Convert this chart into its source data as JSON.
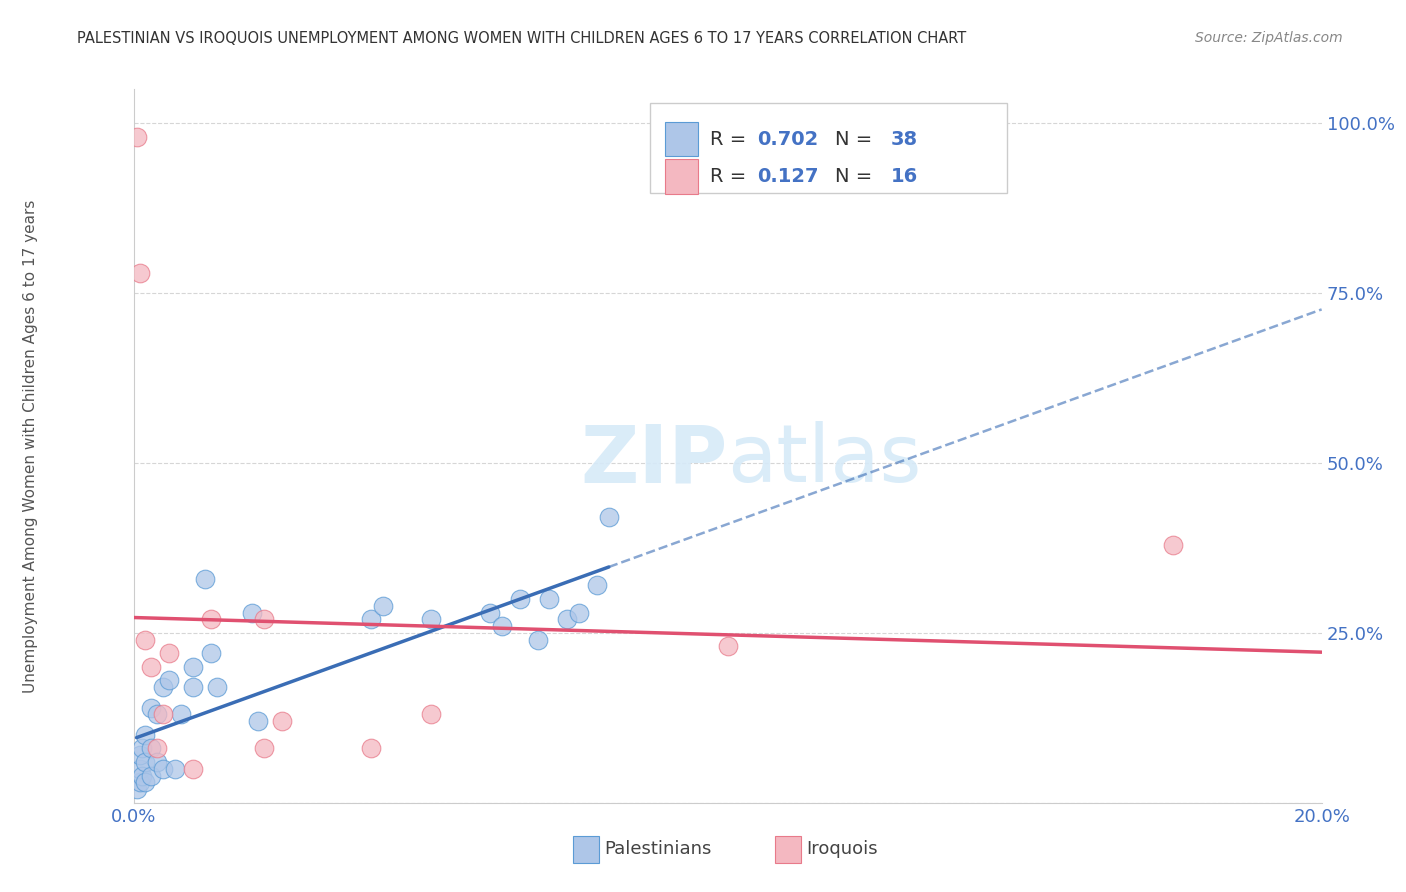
{
  "title": "PALESTINIAN VS IROQUOIS UNEMPLOYMENT AMONG WOMEN WITH CHILDREN AGES 6 TO 17 YEARS CORRELATION CHART",
  "source": "Source: ZipAtlas.com",
  "ylabel": "Unemployment Among Women with Children Ages 6 to 17 years",
  "legend_label_1": "Palestinians",
  "legend_label_2": "Iroquois",
  "R1": 0.702,
  "N1": 38,
  "R2": 0.127,
  "N2": 16,
  "color_blue_fill": "#aec6e8",
  "color_blue_edge": "#5b9bd5",
  "color_blue_line": "#3a6db5",
  "color_pink_fill": "#f4b8c1",
  "color_pink_edge": "#e87a8a",
  "color_pink_line": "#e05070",
  "watermark_color": "#d6eaf8",
  "palestinians_x": [
    0.0005,
    0.001,
    0.001,
    0.001,
    0.0015,
    0.0015,
    0.002,
    0.002,
    0.002,
    0.003,
    0.003,
    0.003,
    0.004,
    0.004,
    0.005,
    0.005,
    0.006,
    0.007,
    0.008,
    0.01,
    0.01,
    0.012,
    0.013,
    0.014,
    0.02,
    0.021,
    0.04,
    0.042,
    0.05,
    0.06,
    0.062,
    0.065,
    0.068,
    0.07,
    0.073,
    0.075,
    0.078,
    0.08
  ],
  "palestinians_y": [
    0.02,
    0.03,
    0.05,
    0.07,
    0.04,
    0.08,
    0.03,
    0.06,
    0.1,
    0.04,
    0.08,
    0.14,
    0.06,
    0.13,
    0.05,
    0.17,
    0.18,
    0.05,
    0.13,
    0.17,
    0.2,
    0.33,
    0.22,
    0.17,
    0.28,
    0.12,
    0.27,
    0.29,
    0.27,
    0.28,
    0.26,
    0.3,
    0.24,
    0.3,
    0.27,
    0.28,
    0.32,
    0.42
  ],
  "iroquois_x": [
    0.0005,
    0.001,
    0.002,
    0.003,
    0.004,
    0.005,
    0.006,
    0.01,
    0.013,
    0.022,
    0.022,
    0.025,
    0.04,
    0.05,
    0.1,
    0.175
  ],
  "iroquois_y": [
    0.98,
    0.78,
    0.24,
    0.2,
    0.08,
    0.13,
    0.22,
    0.05,
    0.27,
    0.08,
    0.27,
    0.12,
    0.08,
    0.13,
    0.23,
    0.38
  ],
  "xlim": [
    0.0,
    0.2
  ],
  "ylim": [
    0.0,
    1.05
  ],
  "yticks": [
    0.0,
    0.25,
    0.5,
    0.75,
    1.0
  ],
  "ytick_labels": [
    "",
    "25.0%",
    "50.0%",
    "75.0%",
    "100.0%"
  ],
  "xtick_labels_show": [
    "0.0%",
    "20.0%"
  ]
}
